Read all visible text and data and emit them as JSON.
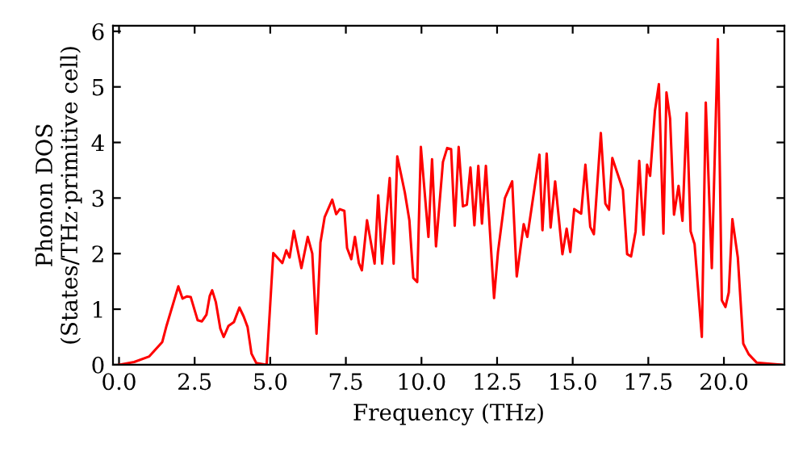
{
  "chart_data": {
    "type": "line",
    "xlabel": "Frequency (THz)",
    "ylabel": "Phonon DOS\n(States/THz·primitive cell)",
    "xlim": [
      -0.2,
      22.0
    ],
    "ylim": [
      0,
      6.1
    ],
    "xticks": [
      {
        "value": 0,
        "label": "0.0"
      },
      {
        "value": 2.5,
        "label": "2.5"
      },
      {
        "value": 5,
        "label": "5.0"
      },
      {
        "value": 7.5,
        "label": "7.5"
      },
      {
        "value": 10,
        "label": "10.0"
      },
      {
        "value": 12.5,
        "label": "12.5"
      },
      {
        "value": 15,
        "label": "15.0"
      },
      {
        "value": 17.5,
        "label": "17.5"
      },
      {
        "value": 20,
        "label": "20.0"
      }
    ],
    "yticks": [
      0,
      1,
      2,
      3,
      4,
      5,
      6
    ],
    "grid": false,
    "legend": false,
    "marker": "none",
    "line_style": "solid",
    "series": [
      {
        "color": "#ff0000",
        "x": [
          0.0,
          0.5,
          1.0,
          1.43,
          1.57,
          1.96,
          2.1,
          2.25,
          2.37,
          2.6,
          2.74,
          2.89,
          3.0,
          3.08,
          3.2,
          3.35,
          3.46,
          3.62,
          3.8,
          3.98,
          4.12,
          4.25,
          4.38,
          4.54,
          4.88,
          5.1,
          5.4,
          5.53,
          5.64,
          5.78,
          6.03,
          6.24,
          6.39,
          6.53,
          6.66,
          6.8,
          7.05,
          7.18,
          7.3,
          7.45,
          7.54,
          7.68,
          7.8,
          7.93,
          8.03,
          8.2,
          8.45,
          8.57,
          8.7,
          8.95,
          9.08,
          9.2,
          9.45,
          9.6,
          9.73,
          9.86,
          9.98,
          10.23,
          10.35,
          10.48,
          10.71,
          10.85,
          10.98,
          11.1,
          11.23,
          11.37,
          11.5,
          11.62,
          11.75,
          11.88,
          12.0,
          12.13,
          12.4,
          12.53,
          12.76,
          13.0,
          13.15,
          13.38,
          13.5,
          13.9,
          14.0,
          14.14,
          14.27,
          14.42,
          14.66,
          14.8,
          14.92,
          15.05,
          15.28,
          15.42,
          15.58,
          15.7,
          15.93,
          16.08,
          16.2,
          16.31,
          16.66,
          16.8,
          16.93,
          17.08,
          17.2,
          17.34,
          17.46,
          17.56,
          17.72,
          17.85,
          18.0,
          18.1,
          18.22,
          18.35,
          18.5,
          18.63,
          18.77,
          18.9,
          19.03,
          19.27,
          19.4,
          19.6,
          19.8,
          19.93,
          20.05,
          20.16,
          20.28,
          20.46,
          20.64,
          20.82,
          21.08,
          21.9
        ],
        "values": [
          0.0,
          0.05,
          0.15,
          0.41,
          0.7,
          1.41,
          1.19,
          1.23,
          1.22,
          0.8,
          0.78,
          0.9,
          1.24,
          1.34,
          1.13,
          0.65,
          0.5,
          0.7,
          0.77,
          1.03,
          0.87,
          0.68,
          0.2,
          0.03,
          0.0,
          2.01,
          1.83,
          2.06,
          1.93,
          2.41,
          1.74,
          2.3,
          2.0,
          0.56,
          2.2,
          2.66,
          2.97,
          2.71,
          2.8,
          2.77,
          2.1,
          1.9,
          2.3,
          1.83,
          1.7,
          2.6,
          1.82,
          3.05,
          1.82,
          3.36,
          1.82,
          3.75,
          3.1,
          2.6,
          1.56,
          1.49,
          3.92,
          2.3,
          3.7,
          2.13,
          3.65,
          3.9,
          3.88,
          2.5,
          3.92,
          2.85,
          2.88,
          3.55,
          2.51,
          3.58,
          2.54,
          3.58,
          1.2,
          2.03,
          3.0,
          3.3,
          1.59,
          2.53,
          2.3,
          3.78,
          2.42,
          3.8,
          2.47,
          3.3,
          1.99,
          2.45,
          2.03,
          2.8,
          2.72,
          3.6,
          2.48,
          2.35,
          4.17,
          2.9,
          2.79,
          3.72,
          3.15,
          1.99,
          1.95,
          2.4,
          3.67,
          2.34,
          3.6,
          3.4,
          4.57,
          5.05,
          2.36,
          4.9,
          4.43,
          2.7,
          3.22,
          2.59,
          4.53,
          2.4,
          2.17,
          0.5,
          4.72,
          1.74,
          5.86,
          1.16,
          1.04,
          1.3,
          2.62,
          1.93,
          0.38,
          0.19,
          0.04,
          0.0
        ]
      }
    ]
  }
}
